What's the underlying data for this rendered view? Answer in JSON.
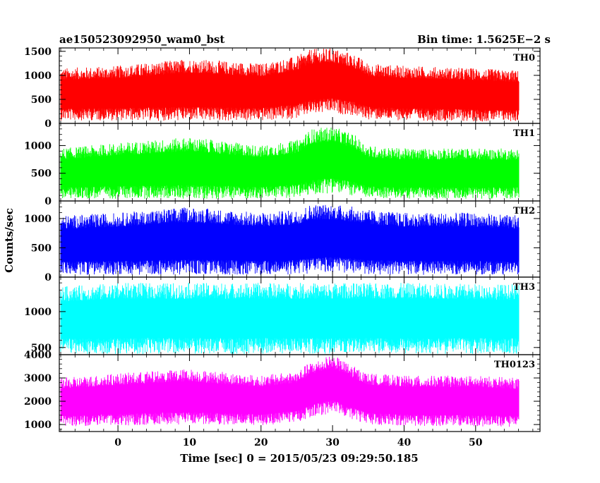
{
  "header": {
    "title": "ae150523092950_wam0_bst",
    "bin_time": "Bin time: 1.5625E−2 s"
  },
  "chart_data": {
    "type": "line",
    "title": "ae150523092950_wam0_bst",
    "subtitle": "Bin time: 1.5625E−2 s",
    "xlabel": "Time [sec] 0 = 2015/05/23 09:29:50.185",
    "ylabel": "Counts/sec",
    "xlim": [
      -8.2,
      59
    ],
    "data_range": [
      -8,
      56
    ],
    "bin_time_s": 0.015625,
    "x_ticks": [
      0,
      10,
      20,
      30,
      40,
      50
    ],
    "x_tick_labels": [
      "0",
      "10",
      "20",
      "30",
      "40",
      "50"
    ],
    "panels": [
      {
        "name": "TH0",
        "color": "#ff0000",
        "ylim": [
          0,
          1570
        ],
        "y_ticks": [
          0,
          500,
          1000,
          1500
        ],
        "y_tick_labels": [
          "0",
          "500",
          "1000",
          "1500"
        ],
        "envelope": {
          "x": [
            -8,
            0,
            10,
            20,
            25,
            27,
            30,
            33,
            35,
            40,
            50,
            56
          ],
          "low": [
            60,
            60,
            50,
            50,
            100,
            180,
            220,
            150,
            80,
            60,
            40,
            40
          ],
          "high": [
            1150,
            1200,
            1350,
            1250,
            1400,
            1550,
            1570,
            1450,
            1250,
            1200,
            1150,
            1100
          ]
        }
      },
      {
        "name": "TH1",
        "color": "#00ff00",
        "ylim": [
          0,
          1400
        ],
        "y_ticks": [
          0,
          500,
          1000
        ],
        "y_tick_labels": [
          "0",
          "500",
          "1000"
        ],
        "envelope": {
          "x": [
            -8,
            0,
            10,
            20,
            25,
            27,
            30,
            33,
            35,
            40,
            50,
            56
          ],
          "low": [
            40,
            40,
            40,
            40,
            60,
            100,
            150,
            90,
            50,
            40,
            40,
            40
          ],
          "high": [
            950,
            1050,
            1150,
            1000,
            1100,
            1300,
            1350,
            1200,
            1000,
            950,
            950,
            950
          ]
        }
      },
      {
        "name": "TH2",
        "color": "#0000ff",
        "ylim": [
          0,
          1300
        ],
        "y_ticks": [
          0,
          500,
          1000
        ],
        "y_tick_labels": [
          "0",
          "500",
          "1000"
        ],
        "envelope": {
          "x": [
            -8,
            0,
            10,
            20,
            25,
            27,
            30,
            33,
            35,
            40,
            50,
            56
          ],
          "low": [
            40,
            40,
            40,
            40,
            40,
            60,
            80,
            60,
            40,
            40,
            40,
            40
          ],
          "high": [
            1050,
            1100,
            1200,
            1100,
            1150,
            1250,
            1250,
            1200,
            1150,
            1100,
            1100,
            1050
          ]
        }
      },
      {
        "name": "TH3",
        "color": "#00ffff",
        "ylim": [
          400,
          1480
        ],
        "y_ticks": [
          500,
          1000
        ],
        "y_tick_labels": [
          "500",
          "1000"
        ],
        "envelope": {
          "x": [
            -8,
            0,
            10,
            20,
            30,
            40,
            56
          ],
          "low": [
            410,
            410,
            410,
            410,
            410,
            410,
            410
          ],
          "high": [
            1350,
            1400,
            1400,
            1400,
            1400,
            1400,
            1380
          ]
        }
      },
      {
        "name": "TH0123",
        "color": "#ff00ff",
        "ylim": [
          700,
          4000
        ],
        "y_ticks": [
          1000,
          2000,
          3000,
          4000
        ],
        "y_tick_labels": [
          "1000",
          "2000",
          "3000",
          "4000"
        ],
        "envelope": {
          "x": [
            -8,
            0,
            10,
            20,
            25,
            27,
            30,
            33,
            35,
            40,
            50,
            56
          ],
          "low": [
            900,
            950,
            1000,
            950,
            1100,
            1300,
            1500,
            1200,
            1000,
            950,
            900,
            900
          ],
          "high": [
            3000,
            3200,
            3400,
            3100,
            3300,
            3700,
            4000,
            3500,
            3200,
            3100,
            3100,
            3000
          ]
        }
      }
    ]
  }
}
